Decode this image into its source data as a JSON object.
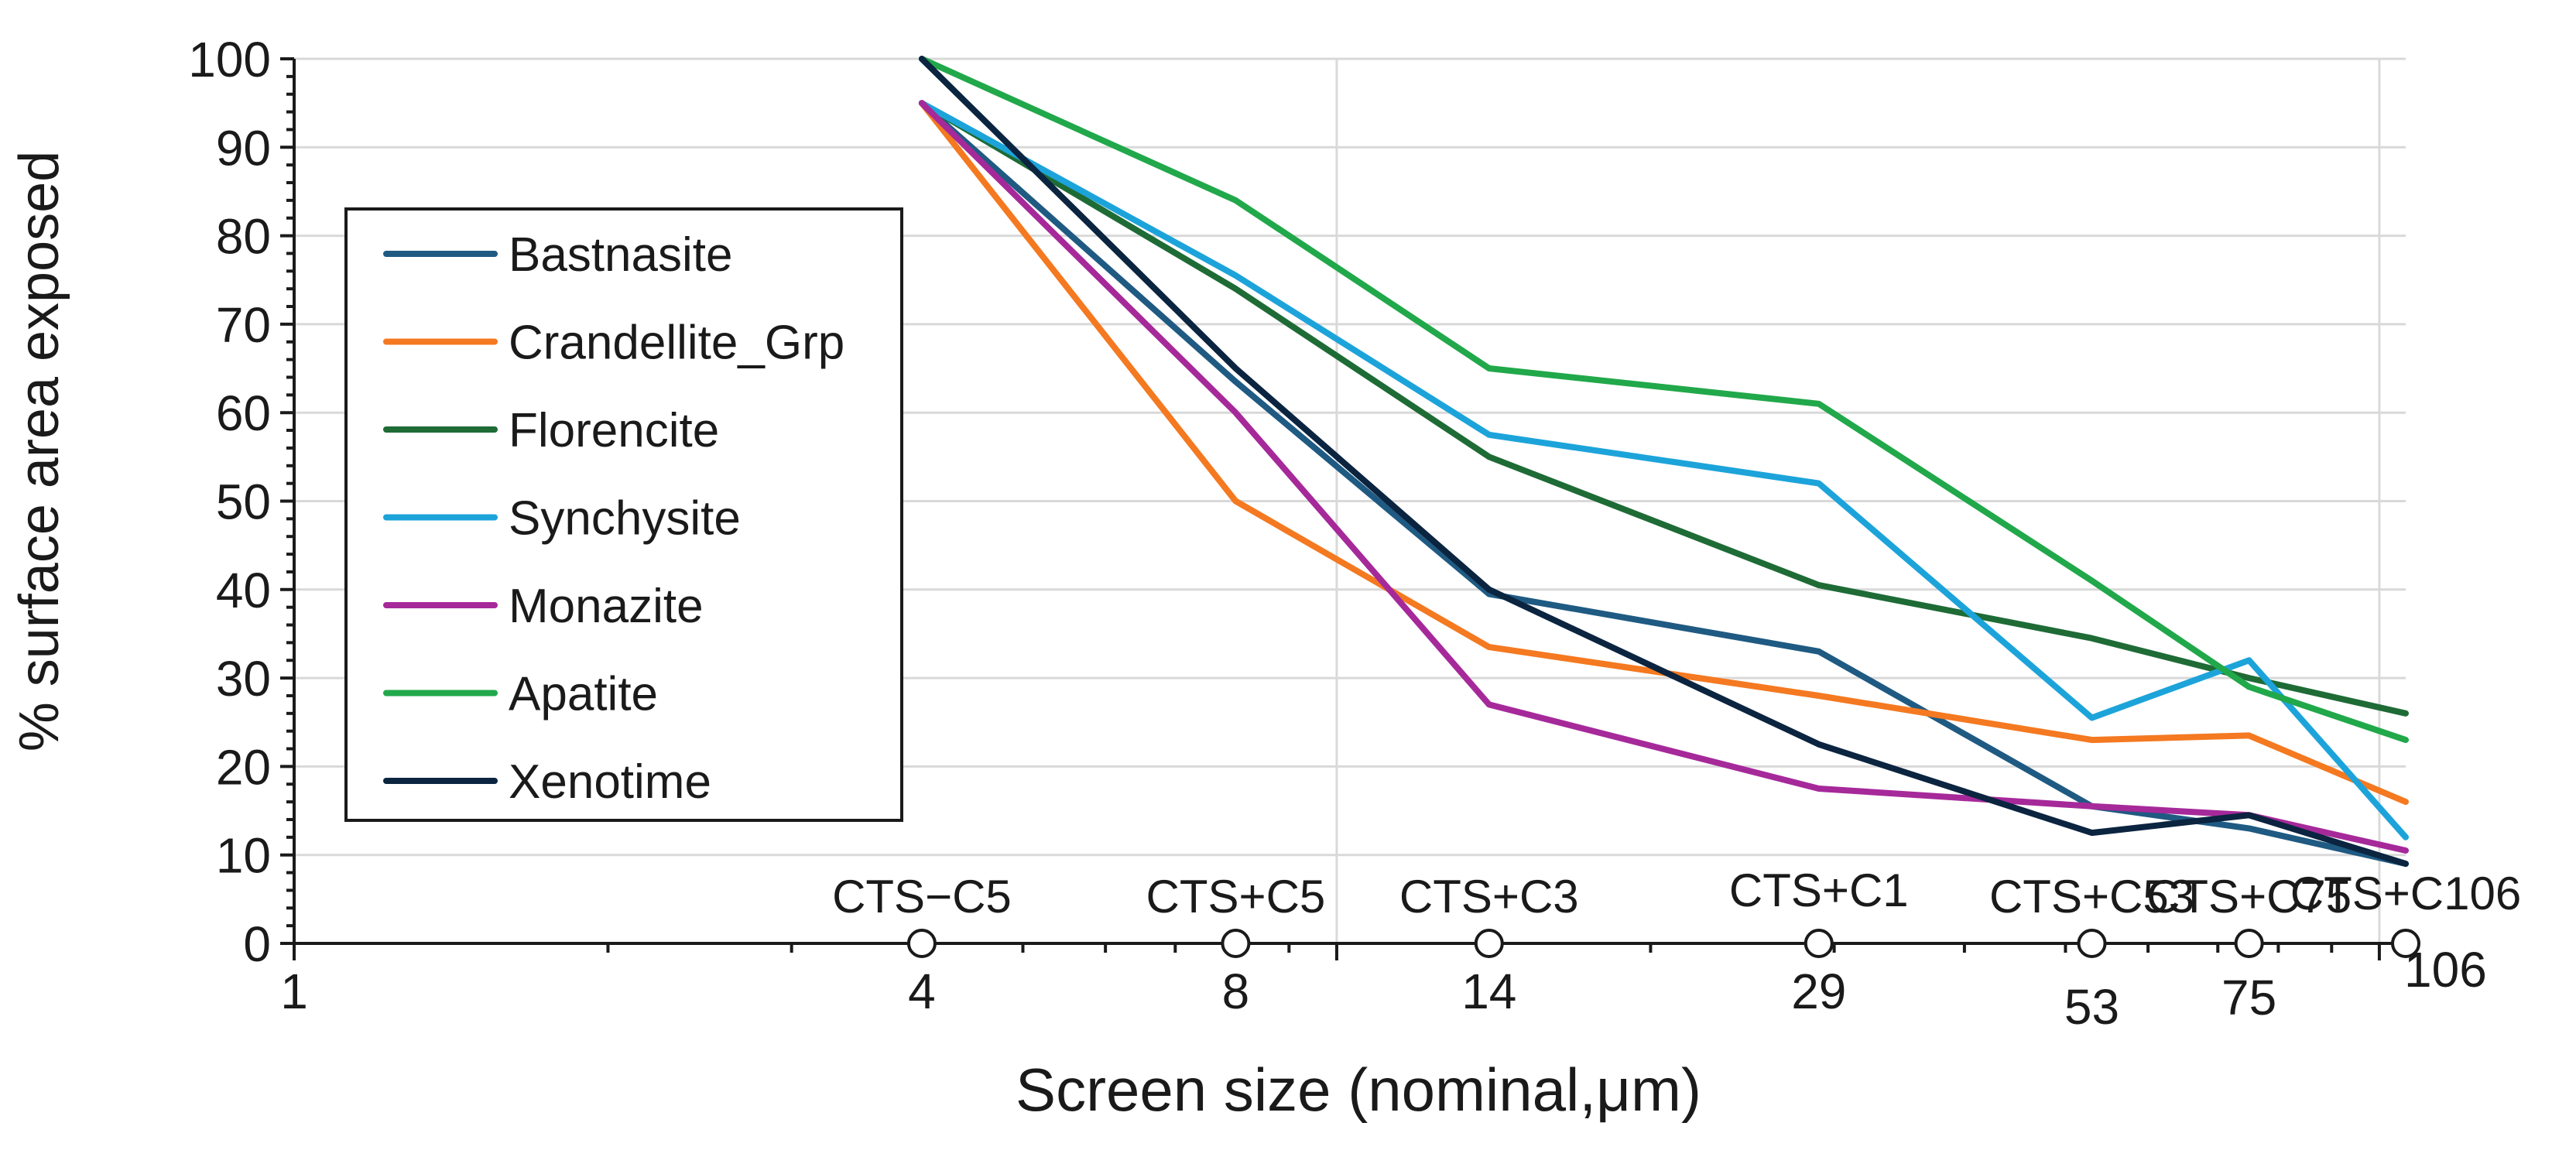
{
  "chart_data": {
    "type": "line",
    "title": "",
    "xlabel": "Screen size (nominal,μm)",
    "ylabel": "% surface area exposed",
    "x_scale": "log",
    "xlim": [
      1,
      106
    ],
    "ylim": [
      0,
      100
    ],
    "y_ticks": [
      0,
      10,
      20,
      30,
      40,
      50,
      60,
      70,
      80,
      90,
      100
    ],
    "x_tick_labels": [
      {
        "value": 1,
        "label": "1"
      },
      {
        "value": 4,
        "label": "4"
      },
      {
        "value": 8,
        "label": "8"
      },
      {
        "value": 14,
        "label": "14"
      },
      {
        "value": 29,
        "label": "29"
      },
      {
        "value": 53,
        "label": "53"
      },
      {
        "value": 75,
        "label": "75"
      },
      {
        "value": 106,
        "label": "106"
      }
    ],
    "x_markers": [
      {
        "x": 4,
        "label": "CTS−C5"
      },
      {
        "x": 8,
        "label": "CTS+C5"
      },
      {
        "x": 14,
        "label": "CTS+C3"
      },
      {
        "x": 29,
        "label": "CTS+C1"
      },
      {
        "x": 53,
        "label": "CTS+C53"
      },
      {
        "x": 75,
        "label": "CTS+C75"
      },
      {
        "x": 106,
        "label": "CTS+C106"
      }
    ],
    "grid": {
      "horizontal": true,
      "vertical_major": true
    },
    "legend_position": "left",
    "x": [
      4,
      8,
      14,
      29,
      53,
      75,
      106
    ],
    "series": [
      {
        "name": "Bastnasite",
        "color": "#1f5a82",
        "values": [
          95,
          63.5,
          39.5,
          33,
          15.5,
          13,
          9
        ]
      },
      {
        "name": "Crandellite_Grp",
        "color": "#f47920",
        "values": [
          95,
          50,
          33.5,
          28,
          23,
          23.5,
          16
        ]
      },
      {
        "name": "Florencite",
        "color": "#1e6b36",
        "values": [
          95,
          74,
          55,
          40.5,
          34.5,
          30,
          26
        ]
      },
      {
        "name": "Synchysite",
        "color": "#1ca4da",
        "values": [
          95,
          75.5,
          57.5,
          52,
          25.5,
          32,
          12
        ]
      },
      {
        "name": "Monazite",
        "color": "#a6299a",
        "values": [
          95,
          60,
          27,
          17.5,
          15.5,
          14.5,
          10.5
        ]
      },
      {
        "name": "Apatite",
        "color": "#21a84a",
        "values": [
          100,
          84,
          65,
          61,
          41,
          29,
          23
        ]
      },
      {
        "name": "Xenotime",
        "color": "#0b2440",
        "values": [
          100,
          65,
          40,
          22.5,
          12.5,
          14.5,
          9
        ]
      }
    ]
  }
}
